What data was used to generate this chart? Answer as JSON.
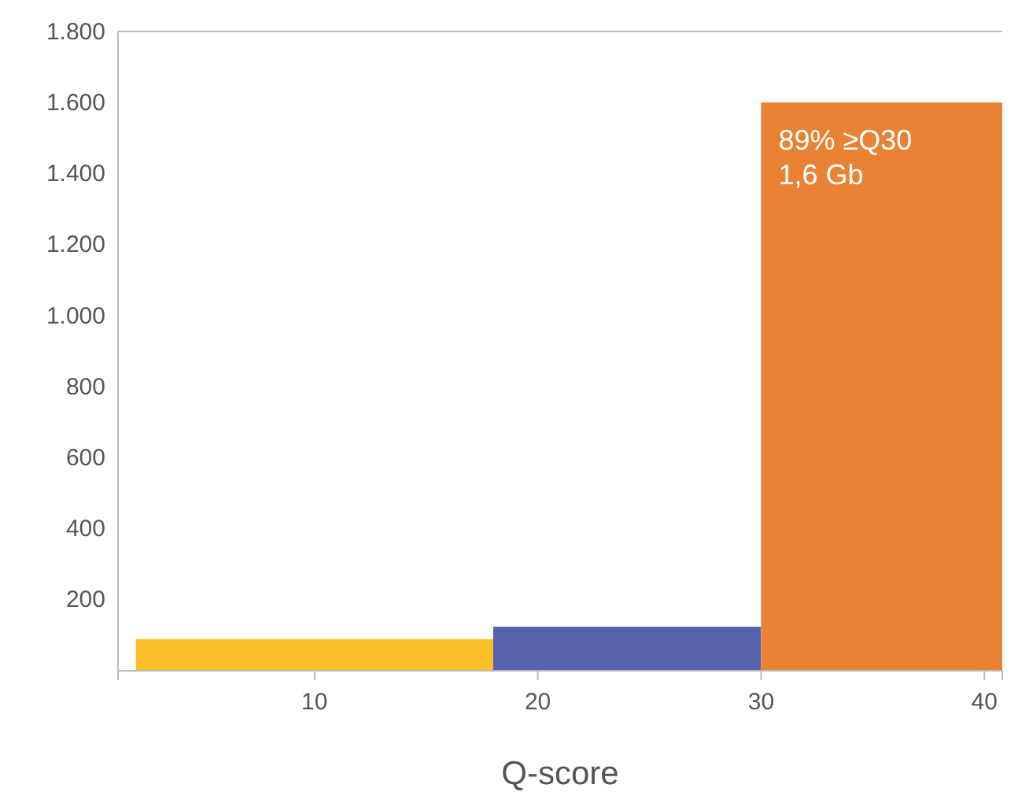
{
  "chart_data": {
    "type": "histogram",
    "xlabel": "Q-score",
    "bins": [
      2,
      18,
      30,
      40.8
    ],
    "values": [
      89,
      124,
      1600
    ],
    "colors": [
      "#fbbf2a",
      "#5763ad",
      "#ea8234"
    ],
    "xlim": [
      1.2,
      40.8
    ],
    "xticks": [
      10,
      20,
      30,
      40
    ],
    "ylim": [
      0,
      1800
    ],
    "yticks": [
      200,
      400,
      600,
      800,
      {
        "value": 1000,
        "label": "1.000"
      },
      {
        "value": 1200,
        "label": "1.200"
      },
      {
        "value": 1400,
        "label": "1.400"
      },
      {
        "value": 1600,
        "label": "1.600"
      },
      {
        "value": 1800,
        "label": "1.800"
      }
    ],
    "annotations": [
      {
        "text": "89% ≥Q30\n1,6 Gb",
        "x": 30,
        "y": 1600
      }
    ],
    "grid": false
  }
}
